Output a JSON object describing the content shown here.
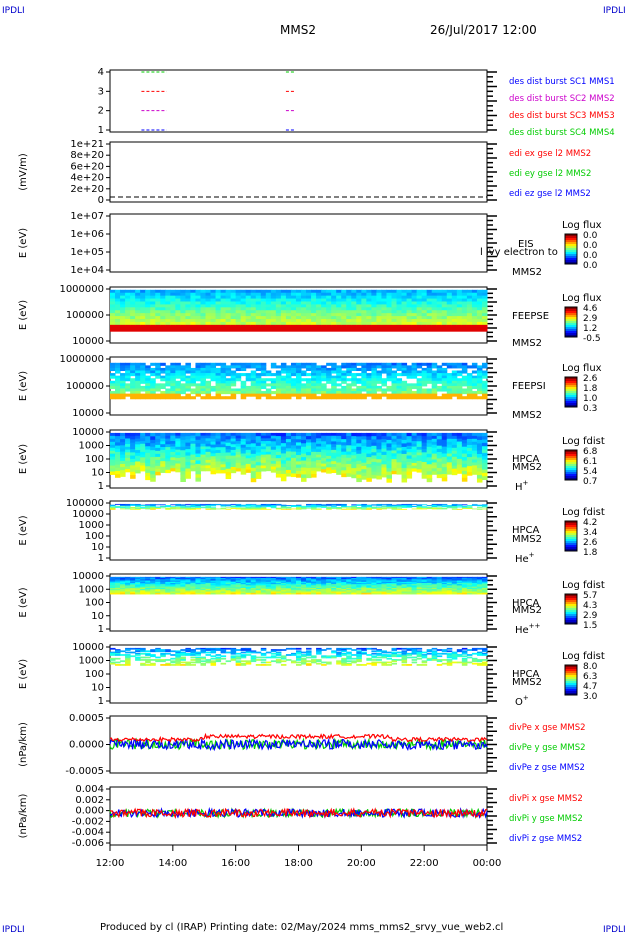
{
  "corner_label": "IPDLI",
  "header": {
    "title": "MMS2",
    "datetime": "26/Jul/2017 12:00"
  },
  "footer": {
    "text": "Produced by cl (IRAP)   Printing date: 02/May/2024   mms_mms2_srvy_vue_web2.cl"
  },
  "time_axis": {
    "ticks": [
      "12:00",
      "14:00",
      "16:00",
      "18:00",
      "20:00",
      "22:00",
      "00:00"
    ]
  },
  "colors": {
    "red": "#ff0000",
    "green": "#00cc00",
    "blue": "#0000ff",
    "magenta": "#cc00cc"
  },
  "chart_data": [
    {
      "id": "burst",
      "type": "line",
      "yticks": [
        "4",
        "3",
        "2",
        "1"
      ],
      "legend": [
        {
          "text": "des dist burst SC1 MMS1",
          "color": "#0000ff"
        },
        {
          "text": "des dist burst SC2 MMS2",
          "color": "#cc00cc"
        },
        {
          "text": "des dist burst SC3 MMS3",
          "color": "#ff0000"
        },
        {
          "text": "des dist burst SC4 MMS4",
          "color": "#00cc00"
        }
      ],
      "series": [
        {
          "level": 4,
          "color": "#00cc00",
          "segments": [
            [
              13.0,
              13.8
            ],
            [
              17.6,
              17.9
            ]
          ]
        },
        {
          "level": 3,
          "color": "#ff0000",
          "segments": [
            [
              13.0,
              13.8
            ],
            [
              17.6,
              17.9
            ]
          ]
        },
        {
          "level": 2,
          "color": "#cc00cc",
          "segments": [
            [
              13.0,
              13.8
            ],
            [
              17.6,
              17.9
            ]
          ]
        },
        {
          "level": 1,
          "color": "#0000ff",
          "segments": [
            [
              13.0,
              13.8
            ],
            [
              17.6,
              17.9
            ]
          ]
        }
      ]
    },
    {
      "id": "edi",
      "type": "line",
      "ylabel": "(mV/m)",
      "yticks": [
        "1e+21",
        "8e+20",
        "6e+20",
        "4e+20",
        "2e+20",
        "0"
      ],
      "legend": [
        {
          "text": "edi ex gse l2 MMS2",
          "color": "#ff0000"
        },
        {
          "text": "edi ey gse l2 MMS2",
          "color": "#00cc00"
        },
        {
          "text": "edi ez gse l2 MMS2",
          "color": "#0000ff"
        }
      ]
    },
    {
      "id": "eis",
      "type": "heatmap",
      "ylabel": "E (eV)",
      "yticks": [
        "1e+07",
        "1e+06",
        "1e+05",
        "1e+04"
      ],
      "name": "EIS",
      "sc": "MMS2",
      "overlay": "l lvy electron to",
      "cbar_title": "Log flux",
      "cbar_ticks": [
        "0.0",
        "0.0",
        "0.0",
        "0.0"
      ]
    },
    {
      "id": "feepse",
      "type": "heatmap",
      "ylabel": "E (eV)",
      "yticks": [
        "1000000",
        "100000",
        "10000"
      ],
      "name": "FEEPSE",
      "sc": "MMS2",
      "cbar_title": "Log flux",
      "cbar_ticks": [
        "4.6",
        "2.9",
        "1.2",
        "-0.5"
      ]
    },
    {
      "id": "feepsi",
      "type": "heatmap",
      "ylabel": "E (eV)",
      "yticks": [
        "1000000",
        "100000",
        "10000"
      ],
      "name": "FEEPSI",
      "sc": "MMS2",
      "cbar_title": "Log flux",
      "cbar_ticks": [
        "2.6",
        "1.8",
        "1.0",
        "0.3"
      ]
    },
    {
      "id": "hpca_h",
      "type": "heatmap",
      "ylabel": "E (eV)",
      "yticks": [
        "10000",
        "1000",
        "100",
        "10",
        "1"
      ],
      "name": "HPCA",
      "sc": "MMS2",
      "species": "H",
      "charge": "+",
      "cbar_title": "Log fdist",
      "cbar_ticks": [
        "6.8",
        "6.1",
        "5.4",
        "0.7"
      ]
    },
    {
      "id": "hpca_he",
      "type": "heatmap",
      "ylabel": "E (eV)",
      "yticks": [
        "100000",
        "10000",
        "1000",
        "100",
        "10",
        "1"
      ],
      "name": "HPCA",
      "sc": "MMS2",
      "species": "He",
      "charge": "+",
      "cbar_title": "Log fdist",
      "cbar_ticks": [
        "4.2",
        "3.4",
        "2.6",
        "1.8"
      ]
    },
    {
      "id": "hpca_hepp",
      "type": "heatmap",
      "ylabel": "E (eV)",
      "yticks": [
        "10000",
        "1000",
        "100",
        "10",
        "1"
      ],
      "name": "HPCA",
      "sc": "MMS2",
      "species": "He",
      "charge": "++",
      "cbar_title": "Log fdist",
      "cbar_ticks": [
        "5.7",
        "4.3",
        "2.9",
        "1.5"
      ]
    },
    {
      "id": "hpca_o",
      "type": "heatmap",
      "ylabel": "E (eV)",
      "yticks": [
        "10000",
        "1000",
        "100",
        "10",
        "1"
      ],
      "name": "HPCA",
      "sc": "MMS2",
      "species": "O",
      "charge": "+",
      "cbar_title": "Log fdist",
      "cbar_ticks": [
        "8.0",
        "6.3",
        "4.7",
        "3.0"
      ]
    },
    {
      "id": "divpe",
      "type": "line",
      "ylabel": "(nPa/km)",
      "yticks": [
        "0.0005",
        "0.0000",
        "-0.0005"
      ],
      "legend": [
        {
          "text": "divPe x gse MMS2",
          "color": "#ff0000"
        },
        {
          "text": "divPe y gse MMS2",
          "color": "#00cc00"
        },
        {
          "text": "divPe z gse MMS2",
          "color": "#0000ff"
        }
      ]
    },
    {
      "id": "divpi",
      "type": "line",
      "ylabel": "(nPa/km)",
      "yticks": [
        "0.004",
        "0.002",
        "0.000",
        "-0.002",
        "-0.004",
        "-0.006"
      ],
      "legend": [
        {
          "text": "divPi x gse MMS2",
          "color": "#ff0000"
        },
        {
          "text": "divPi y gse MMS2",
          "color": "#00cc00"
        },
        {
          "text": "divPi z gse MMS2",
          "color": "#0000ff"
        }
      ]
    }
  ]
}
